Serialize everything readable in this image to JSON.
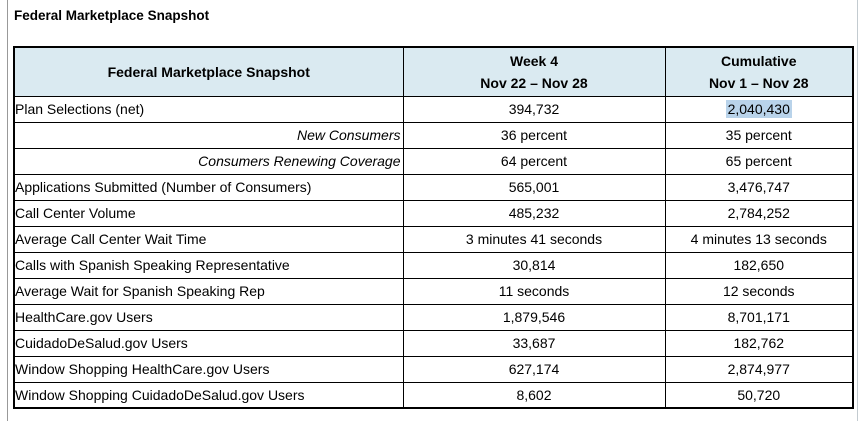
{
  "title": "Federal Marketplace Snapshot",
  "table": {
    "columns": [
      {
        "title": "Federal Marketplace Snapshot",
        "subtitle": ""
      },
      {
        "title": "Week 4",
        "subtitle": "Nov 22 – Nov 28"
      },
      {
        "title": "Cumulative",
        "subtitle": "Nov 1 – Nov 28"
      }
    ],
    "rows": [
      {
        "label": "Plan Selections (net)",
        "week": "394,732",
        "cumulative": "2,040,430",
        "style": "normal",
        "cumulative_highlighted": true
      },
      {
        "label": "New Consumers",
        "week": "36 percent",
        "cumulative": "35 percent",
        "style": "italic-right",
        "cumulative_highlighted": false
      },
      {
        "label": "Consumers Renewing Coverage",
        "week": "64 percent",
        "cumulative": "65 percent",
        "style": "italic-right",
        "cumulative_highlighted": false
      },
      {
        "label": "Applications Submitted (Number of Consumers)",
        "week": "565,001",
        "cumulative": "3,476,747",
        "style": "normal",
        "cumulative_highlighted": false
      },
      {
        "label": "Call Center Volume",
        "week": "485,232",
        "cumulative": "2,784,252",
        "style": "normal",
        "cumulative_highlighted": false
      },
      {
        "label": "Average Call Center Wait Time",
        "week": "3 minutes 41 seconds",
        "cumulative": "4 minutes 13 seconds",
        "style": "normal",
        "cumulative_highlighted": false
      },
      {
        "label": "Calls with Spanish Speaking Representative",
        "week": "30,814",
        "cumulative": "182,650",
        "style": "normal",
        "cumulative_highlighted": false
      },
      {
        "label": "Average Wait for Spanish Speaking Rep",
        "week": "11 seconds",
        "cumulative": "12 seconds",
        "style": "normal",
        "cumulative_highlighted": false
      },
      {
        "label": "HealthCare.gov Users",
        "week": "1,879,546",
        "cumulative": "8,701,171",
        "style": "normal",
        "cumulative_highlighted": false
      },
      {
        "label": "CuidadoDeSalud.gov Users",
        "week": "33,687",
        "cumulative": "182,762",
        "style": "normal",
        "cumulative_highlighted": false
      },
      {
        "label": "Window Shopping HealthCare.gov Users",
        "week": "627,174",
        "cumulative": "2,874,977",
        "style": "normal",
        "cumulative_highlighted": false
      },
      {
        "label": "Window Shopping CuidadoDeSalud.gov Users",
        "week": "8,602",
        "cumulative": "50,720",
        "style": "normal",
        "cumulative_highlighted": false
      }
    ]
  },
  "colors": {
    "header_bg": "#daeaf1",
    "selection_highlight": "#b9d3ea",
    "table_border": "#000000"
  }
}
